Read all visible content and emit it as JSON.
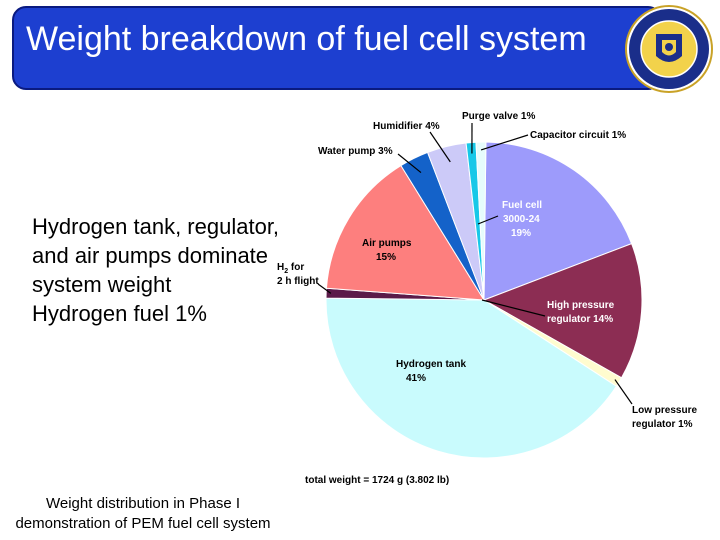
{
  "slide": {
    "title": "Weight breakdown of fuel cell system",
    "bullets": [
      "Hydrogen tank, regulator, and air pumps dominate system weight",
      "Hydrogen fuel 1%"
    ],
    "caption": "Weight distribution in Phase I demonstration of PEM fuel cell system"
  },
  "chart_data": {
    "type": "pie",
    "title": "",
    "note": "total weight = 1724 g (3.802 lb)",
    "slices": [
      {
        "label": "Fuel cell 3000-24",
        "value": 19,
        "color": "#9d9bfb"
      },
      {
        "label": "High pressure regulator",
        "value": 14,
        "color": "#8c2d53"
      },
      {
        "label": "Low pressure regulator",
        "value": 1,
        "color": "#fffccf"
      },
      {
        "label": "Hydrogen tank",
        "value": 41,
        "color": "#c9fbfd"
      },
      {
        "label": "H2 for 2 h flight",
        "value": 1,
        "color": "#5b1a49"
      },
      {
        "label": "Air pumps",
        "value": 15,
        "color": "#fd7f7e"
      },
      {
        "label": "Water pump",
        "value": 3,
        "color": "#1462c9"
      },
      {
        "label": "Humidifier",
        "value": 4,
        "color": "#cccaf8"
      },
      {
        "label": "Purge valve",
        "value": 1,
        "color": "#17c8e8"
      },
      {
        "label": "Capacitor circuit",
        "value": 1,
        "color": "#e6fcfc"
      }
    ],
    "labels": {
      "fuel_cell": [
        "Fuel cell",
        "3000-24",
        "19%"
      ],
      "high_pressure": [
        "High pressure",
        "regulator  14%"
      ],
      "low_pressure": [
        "Low pressure",
        "regulator  1%"
      ],
      "hydrogen_tank": [
        "Hydrogen tank",
        "41%"
      ],
      "h2": [
        "H",
        "2",
        " for",
        "2 h flight"
      ],
      "air_pumps": [
        "Air pumps",
        "15%"
      ],
      "water_pump": "Water pump  3%",
      "humidifier": "Humidifier  4%",
      "purge_valve": "Purge valve 1%",
      "capacitor": "Capacitor circuit 1%"
    }
  }
}
